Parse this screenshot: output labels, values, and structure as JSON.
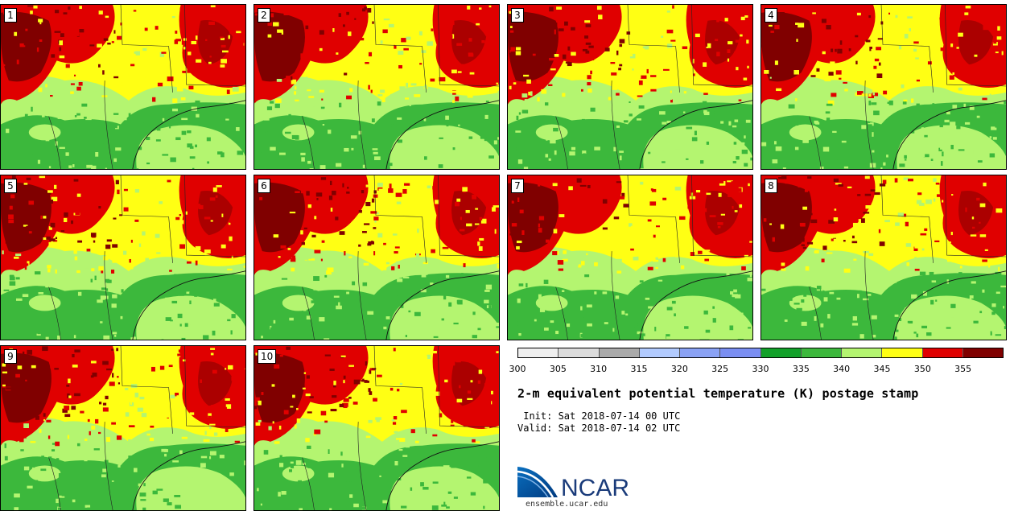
{
  "panels": [
    {
      "label": "1"
    },
    {
      "label": "2"
    },
    {
      "label": "3"
    },
    {
      "label": "4"
    },
    {
      "label": "5"
    },
    {
      "label": "6"
    },
    {
      "label": "7"
    },
    {
      "label": "8"
    },
    {
      "label": "9"
    },
    {
      "label": "10"
    }
  ],
  "colorbar": {
    "colors": [
      "#efefef",
      "#dcdcdc",
      "#aaaaaa",
      "#b2cbff",
      "#8aa2f5",
      "#7a8ef2",
      "#12a12a",
      "#3cb83c",
      "#b4f570",
      "#ffff14",
      "#e00000",
      "#800000"
    ],
    "ticks": [
      "300",
      "305",
      "310",
      "315",
      "320",
      "325",
      "330",
      "335",
      "340",
      "345",
      "350",
      "355"
    ]
  },
  "title": "2-m equivalent potential temperature (K) postage stamp",
  "init": " Init: Sat 2018-07-14 00 UTC",
  "valid": "Valid: Sat 2018-07-14 02 UTC",
  "logo": {
    "text": "NCAR",
    "website": "ensemble.ucar.edu"
  },
  "map_colors": {
    "dark_green": "#3cb83c",
    "light_green": "#b4f570",
    "yellow": "#ffff14",
    "red": "#e00000",
    "dark_red": "#800000"
  }
}
